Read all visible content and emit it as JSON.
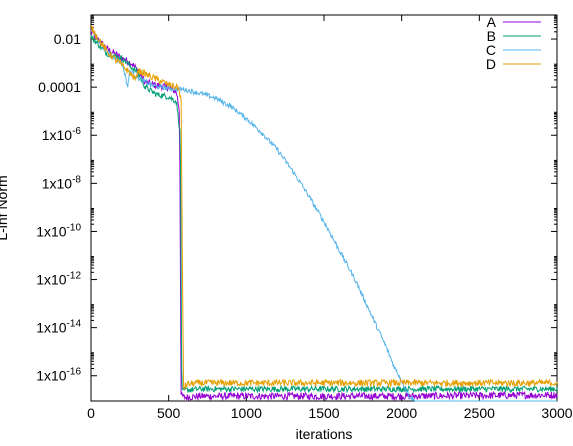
{
  "chart_data": {
    "type": "line",
    "title": "",
    "xlabel": "iterations",
    "ylabel": "L-inf Norm",
    "xlim": [
      0,
      3000
    ],
    "ylim_log10": [
      -17.05,
      -1.0
    ],
    "y_scale": "log",
    "grid": false,
    "legend_position": "top-right",
    "x_ticks": [
      {
        "value": 0,
        "label": "0"
      },
      {
        "value": 500,
        "label": "500"
      },
      {
        "value": 1000,
        "label": "1000"
      },
      {
        "value": 1500,
        "label": "1500"
      },
      {
        "value": 2000,
        "label": "2000"
      },
      {
        "value": 2500,
        "label": "2500"
      },
      {
        "value": 3000,
        "label": "3000"
      }
    ],
    "y_ticks": [
      {
        "log10": -2,
        "label": "0.01",
        "base": "",
        "exp": ""
      },
      {
        "log10": -4,
        "label": "0.0001",
        "base": "",
        "exp": ""
      },
      {
        "log10": -6,
        "label": "",
        "base": "1x10",
        "exp": "-6"
      },
      {
        "log10": -8,
        "label": "",
        "base": "1x10",
        "exp": "-8"
      },
      {
        "log10": -10,
        "label": "",
        "base": "1x10",
        "exp": "-10"
      },
      {
        "log10": -12,
        "label": "",
        "base": "1x10",
        "exp": "-12"
      },
      {
        "log10": -14,
        "label": "",
        "base": "1x10",
        "exp": "-14"
      },
      {
        "log10": -16,
        "label": "",
        "base": "1x10",
        "exp": "-16"
      }
    ],
    "series": [
      {
        "name": "A",
        "color": "#9400d3",
        "points": [
          [
            0,
            -1.7
          ],
          [
            100,
            -2.4
          ],
          [
            200,
            -2.8
          ],
          [
            260,
            -3.0
          ],
          [
            300,
            -3.3
          ],
          [
            350,
            -3.8
          ],
          [
            400,
            -3.9
          ],
          [
            500,
            -4.0
          ],
          [
            550,
            -4.2
          ],
          [
            570,
            -5.0
          ],
          [
            580,
            -16.8
          ],
          [
            600,
            -16.9
          ],
          [
            700,
            -16.85
          ],
          [
            1000,
            -16.85
          ],
          [
            2000,
            -16.85
          ],
          [
            3000,
            -16.8
          ]
        ],
        "noise": 0.15
      },
      {
        "name": "B",
        "color": "#009e73",
        "points": [
          [
            0,
            -1.9
          ],
          [
            100,
            -2.6
          ],
          [
            200,
            -2.8
          ],
          [
            250,
            -3.1
          ],
          [
            300,
            -3.4
          ],
          [
            350,
            -4.0
          ],
          [
            420,
            -4.3
          ],
          [
            500,
            -4.4
          ],
          [
            550,
            -4.6
          ],
          [
            575,
            -6.0
          ],
          [
            585,
            -16.7
          ],
          [
            600,
            -16.6
          ],
          [
            700,
            -16.55
          ],
          [
            1000,
            -16.55
          ],
          [
            2000,
            -16.55
          ],
          [
            3000,
            -16.55
          ]
        ],
        "noise": 0.12
      },
      {
        "name": "C",
        "color": "#56b4e9",
        "points": [
          [
            0,
            -1.6
          ],
          [
            100,
            -2.5
          ],
          [
            200,
            -3.0
          ],
          [
            220,
            -3.5
          ],
          [
            235,
            -4.0
          ],
          [
            250,
            -3.3
          ],
          [
            300,
            -3.6
          ],
          [
            400,
            -3.95
          ],
          [
            500,
            -4.05
          ],
          [
            600,
            -4.1
          ],
          [
            700,
            -4.25
          ],
          [
            800,
            -4.45
          ],
          [
            900,
            -4.8
          ],
          [
            1000,
            -5.3
          ],
          [
            1100,
            -5.9
          ],
          [
            1200,
            -6.6
          ],
          [
            1300,
            -7.5
          ],
          [
            1400,
            -8.5
          ],
          [
            1500,
            -9.6
          ],
          [
            1600,
            -10.8
          ],
          [
            1700,
            -12.0
          ],
          [
            1800,
            -13.4
          ],
          [
            1900,
            -14.8
          ],
          [
            1950,
            -15.6
          ],
          [
            2000,
            -16.2
          ],
          [
            2050,
            -16.85
          ],
          [
            2100,
            -17.15
          ],
          [
            2500,
            -17.2
          ],
          [
            3000,
            -17.2
          ]
        ],
        "noise": 0.1
      },
      {
        "name": "D",
        "color": "#e69f00",
        "points": [
          [
            0,
            -1.5
          ],
          [
            100,
            -2.5
          ],
          [
            200,
            -3.1
          ],
          [
            250,
            -3.4
          ],
          [
            290,
            -3.7
          ],
          [
            300,
            -3.3
          ],
          [
            400,
            -3.6
          ],
          [
            500,
            -3.9
          ],
          [
            560,
            -4.0
          ],
          [
            580,
            -4.5
          ],
          [
            595,
            -16.5
          ],
          [
            620,
            -16.35
          ],
          [
            700,
            -16.3
          ],
          [
            1000,
            -16.3
          ],
          [
            2000,
            -16.3
          ],
          [
            3000,
            -16.3
          ]
        ],
        "noise": 0.14
      }
    ]
  }
}
